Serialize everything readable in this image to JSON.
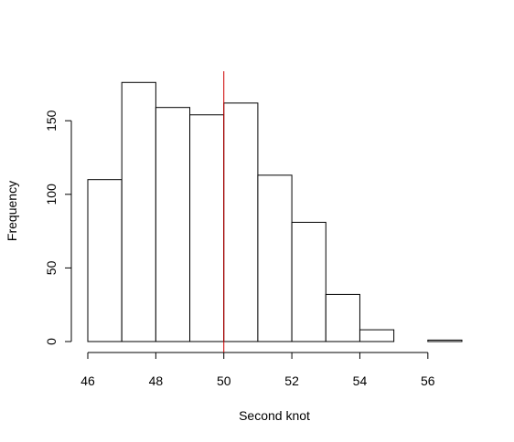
{
  "chart_data": {
    "type": "bar",
    "subtype": "histogram",
    "title": "",
    "xlabel": "Second knot",
    "ylabel": "Frequency",
    "bins": [
      {
        "from": 46,
        "to": 47,
        "count": 110
      },
      {
        "from": 47,
        "to": 48,
        "count": 176
      },
      {
        "from": 48,
        "to": 49,
        "count": 159
      },
      {
        "from": 49,
        "to": 50,
        "count": 154
      },
      {
        "from": 50,
        "to": 51,
        "count": 162
      },
      {
        "from": 51,
        "to": 52,
        "count": 113
      },
      {
        "from": 52,
        "to": 53,
        "count": 81
      },
      {
        "from": 53,
        "to": 54,
        "count": 32
      },
      {
        "from": 54,
        "to": 55,
        "count": 8
      },
      {
        "from": 55,
        "to": 56,
        "count": 0
      },
      {
        "from": 56,
        "to": 57,
        "count": 1
      }
    ],
    "xlim": [
      46,
      57
    ],
    "ylim": [
      0,
      185
    ],
    "x_ticks": [
      46,
      48,
      50,
      52,
      54,
      56
    ],
    "y_ticks": [
      0,
      50,
      100,
      150
    ],
    "x_tick_labels": [
      "46",
      "48",
      "50",
      "52",
      "54",
      "56"
    ],
    "y_tick_labels": [
      "0",
      "50",
      "100",
      "150"
    ],
    "reference_line": {
      "x": 50,
      "color": "#cc0000"
    },
    "bar_fill": "#ffffff",
    "bar_stroke": "#000000",
    "grid": false,
    "legend": "none"
  }
}
